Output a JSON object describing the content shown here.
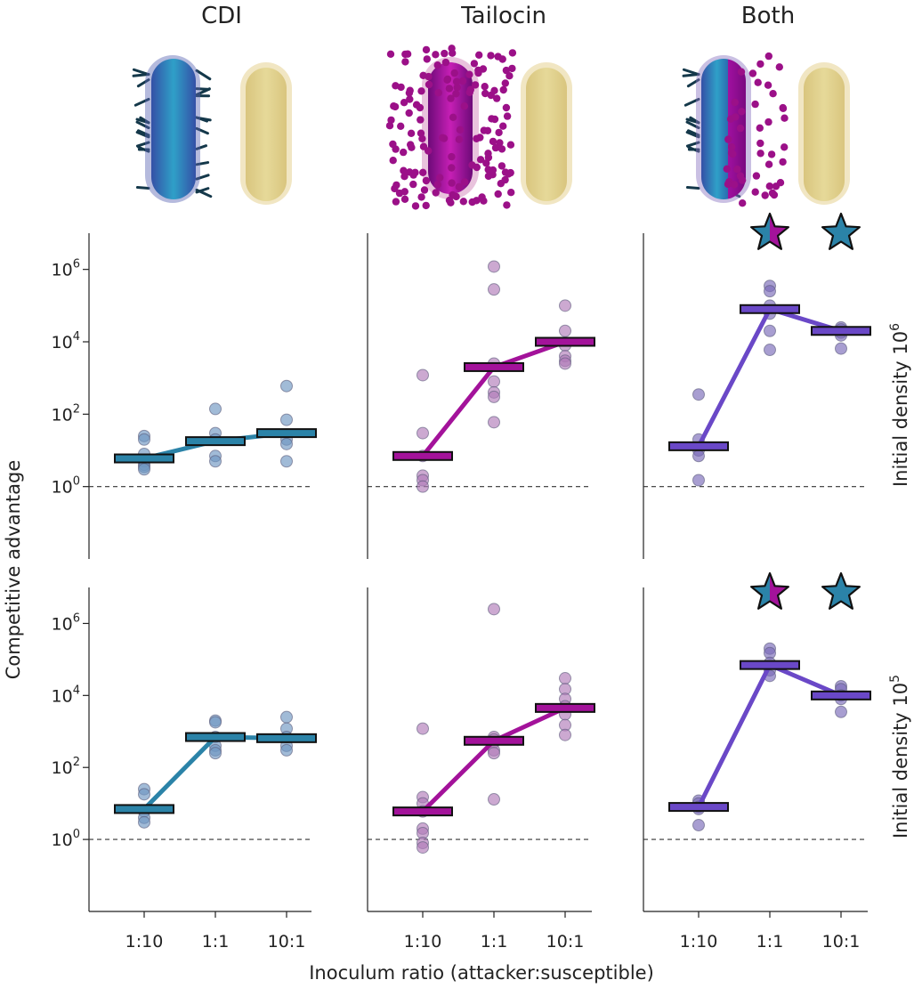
{
  "figure": {
    "column_titles": [
      "CDI",
      "Tailocin",
      "Both"
    ],
    "row_labels": [
      "Initial density 10",
      "Initial density 10"
    ],
    "row_label_exponents": [
      "6",
      "5"
    ],
    "ylabel": "Competitive advantage",
    "xlabel": "Inoculum ratio (attacker:susceptible)"
  },
  "colors": {
    "cdi": "#2b83a8",
    "cdi_point": "#6f97c2",
    "tailocin": "#a3129a",
    "tailocin_point": "#b17bb9",
    "both": "#6a48c7",
    "both_point": "#7a6ab8",
    "susceptible": "#e0d08c",
    "star_blue": "#2b83a8",
    "star_magenta": "#a3129a"
  },
  "icons": [
    "cdi-bacterium-icon",
    "tailocin-bacterium-icon",
    "both-bacterium-icon",
    "susceptible-bacterium-icon",
    "star-icon"
  ],
  "chart_data": [
    {
      "type": "scatter",
      "title": "CDI",
      "row": "Initial density 10^6",
      "categories": [
        "1:10",
        "1:1",
        "10:1"
      ],
      "ylabel": "Competitive advantage",
      "yscale": "log",
      "yticks": [
        1,
        100,
        10000,
        1000000
      ],
      "ytick_labels": [
        [
          "10",
          "0"
        ],
        [
          "10",
          "2"
        ],
        [
          "10",
          "4"
        ],
        [
          "10",
          "6"
        ]
      ],
      "ylim": [
        0.01,
        10000000
      ],
      "reference_line": 1,
      "means": [
        6,
        18,
        30
      ],
      "points": [
        [
          25,
          20,
          8,
          5,
          4,
          3.5,
          3
        ],
        [
          140,
          30,
          20,
          7,
          5
        ],
        [
          600,
          70,
          20,
          15,
          5
        ]
      ],
      "stars": []
    },
    {
      "type": "scatter",
      "title": "Tailocin",
      "row": "Initial density 10^6",
      "categories": [
        "1:10",
        "1:1",
        "10:1"
      ],
      "yscale": "log",
      "ylim": [
        0.01,
        10000000
      ],
      "reference_line": 1,
      "means": [
        7,
        2000,
        10000
      ],
      "points": [
        [
          1200,
          30,
          7,
          2,
          1.5,
          1
        ],
        [
          1200000,
          280000,
          2500,
          800,
          400,
          300,
          60
        ],
        [
          100000,
          20000,
          8000,
          4000,
          3000,
          2500
        ]
      ],
      "stars": []
    },
    {
      "type": "scatter",
      "title": "Both",
      "row": "Initial density 10^6",
      "categories": [
        "1:10",
        "1:1",
        "10:1"
      ],
      "yscale": "log",
      "ylim": [
        0.01,
        10000000
      ],
      "reference_line": 1,
      "means": [
        13,
        80000,
        20000
      ],
      "points": [
        [
          350,
          20,
          10,
          7,
          1.5
        ],
        [
          350000,
          250000,
          100000,
          60000,
          20000,
          6000
        ],
        [
          25000,
          22000,
          18000,
          15000,
          6500
        ]
      ],
      "stars": [
        "split",
        "blue"
      ]
    },
    {
      "type": "scatter",
      "title": "CDI",
      "row": "Initial density 10^5",
      "categories": [
        "1:10",
        "1:1",
        "10:1"
      ],
      "yscale": "log",
      "yticks": [
        1,
        100,
        10000,
        1000000
      ],
      "ytick_labels": [
        [
          "10",
          "0"
        ],
        [
          "10",
          "2"
        ],
        [
          "10",
          "4"
        ],
        [
          "10",
          "6"
        ]
      ],
      "ylim": [
        0.01,
        10000000
      ],
      "reference_line": 1,
      "means": [
        7,
        700,
        650
      ],
      "points": [
        [
          25,
          18,
          6,
          4,
          3
        ],
        [
          2000,
          1800,
          700,
          400,
          300,
          250
        ],
        [
          2500,
          1200,
          700,
          400,
          300
        ]
      ],
      "stars": []
    },
    {
      "type": "scatter",
      "title": "Tailocin",
      "row": "Initial density 10^5",
      "categories": [
        "1:10",
        "1:1",
        "10:1"
      ],
      "yscale": "log",
      "ylim": [
        0.01,
        10000000
      ],
      "reference_line": 1,
      "means": [
        6,
        550,
        4500
      ],
      "points": [
        [
          1200,
          15,
          10,
          6,
          2,
          1.5,
          0.8,
          0.6
        ],
        [
          2500000,
          700,
          600,
          500,
          300,
          250,
          13
        ],
        [
          30000,
          15000,
          8000,
          5000,
          3000,
          1500,
          800
        ]
      ],
      "stars": []
    },
    {
      "type": "scatter",
      "title": "Both",
      "row": "Initial density 10^5",
      "categories": [
        "1:10",
        "1:1",
        "10:1"
      ],
      "yscale": "log",
      "ylim": [
        0.01,
        10000000
      ],
      "reference_line": 1,
      "means": [
        8,
        70000,
        10000
      ],
      "points": [
        [
          12,
          10,
          8,
          7,
          2.5
        ],
        [
          200000,
          150000,
          80000,
          50000,
          35000
        ],
        [
          18000,
          15000,
          10000,
          8000,
          3500
        ]
      ],
      "stars": [
        "split",
        "blue"
      ]
    }
  ]
}
